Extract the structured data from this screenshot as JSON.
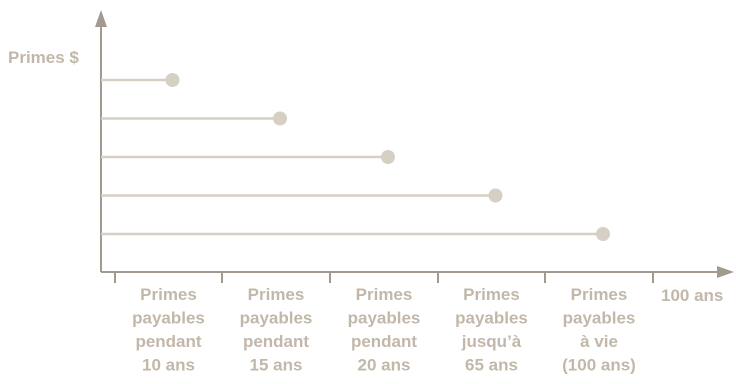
{
  "chart_data": {
    "type": "line",
    "ylabel": "Primes $",
    "xlabel": "100 ans",
    "categories": [
      [
        "Primes",
        "payables",
        "pendant",
        "10 ans"
      ],
      [
        "Primes",
        "payables",
        "pendant",
        "15 ans"
      ],
      [
        "Primes",
        "payables",
        "pendant",
        "20 ans"
      ],
      [
        "Primes",
        "payables",
        "jusqu’à",
        "65 ans"
      ],
      [
        "Primes",
        "payables",
        "à vie",
        "(100 ans)"
      ]
    ],
    "series": [
      {
        "end_category": 0
      },
      {
        "end_category": 1
      },
      {
        "end_category": 2
      },
      {
        "end_category": 3
      },
      {
        "end_category": 4
      }
    ],
    "grid": false,
    "legend": "none"
  },
  "colors": {
    "axis": "#a29a8f",
    "label": "#c2b8aa",
    "line": "#d6d0c4",
    "dot": "#d6d0c4"
  }
}
